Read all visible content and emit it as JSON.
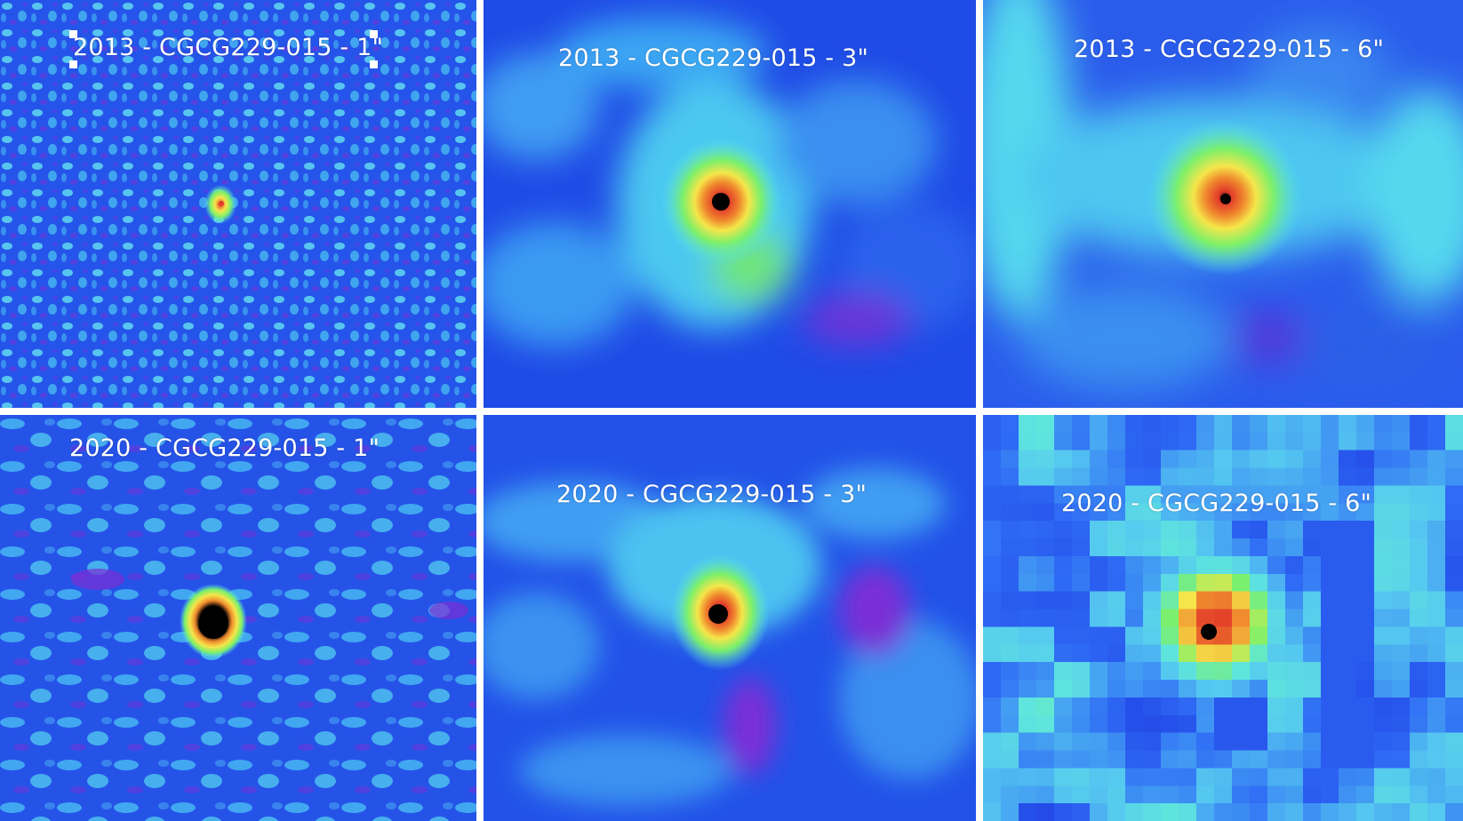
{
  "panels": [
    {
      "label": "2013 - CGCG229-015 - 1\""
    },
    {
      "label": "2013 - CGCG229-015 - 3\""
    },
    {
      "label": "2013 - CGCG229-015 - 6\""
    },
    {
      "label": "2020 - CGCG229-015 - 1\""
    },
    {
      "label": "2020 - CGCG229-015 - 3\""
    },
    {
      "label": "2020 - CGCG229-015 - 6\""
    }
  ],
  "colormap": {
    "deep": "#1a3fe0",
    "blue": "#2f6cf5",
    "cyan": "#55e6f2",
    "green": "#7cf06a",
    "yellow": "#f5e64a",
    "orange": "#f08a2e",
    "red": "#e23a2a",
    "magenta": "#7a2fd6",
    "core": "#000000"
  }
}
